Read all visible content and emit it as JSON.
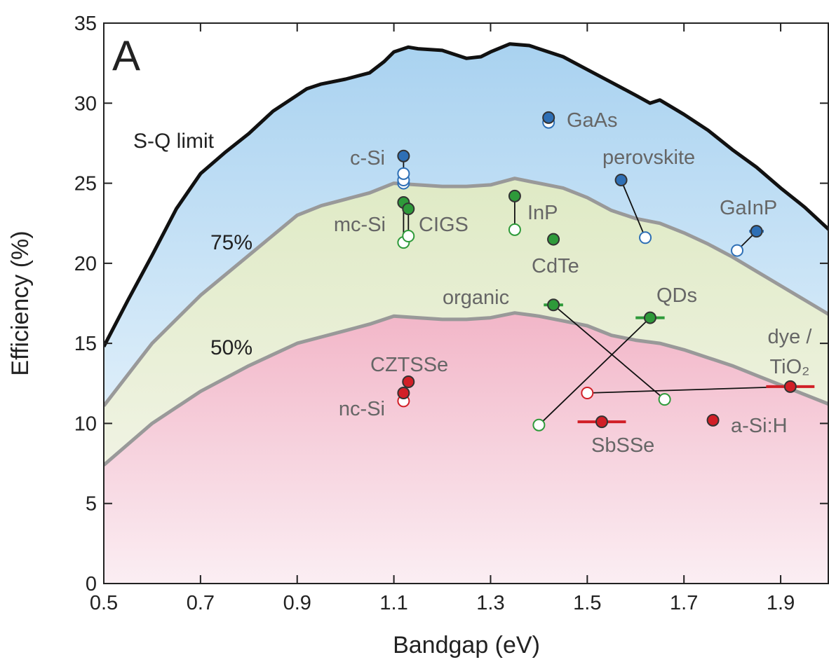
{
  "chart_data": {
    "type": "scatter",
    "panel_label": "A",
    "xlabel": "Bandgap (eV)",
    "ylabel": "Efficiency (%)",
    "xlim": [
      0.5,
      2.0
    ],
    "ylim": [
      0,
      35
    ],
    "x_ticks": [
      "0.5",
      "0.7",
      "0.9",
      "1.1",
      "1.3",
      "1.5",
      "1.7",
      "1.9"
    ],
    "y_ticks": [
      "0",
      "5",
      "10",
      "15",
      "20",
      "25",
      "30",
      "35"
    ],
    "colors": {
      "blue": "#2e6fb5",
      "green": "#2e9a3a",
      "red": "#d11f27",
      "limit_curve": "#111111",
      "fraction_curve": "#999999",
      "fill_top": "#a9d2f0",
      "fill_middle": "#dfeac5",
      "fill_bottom": "#f2b6c8"
    },
    "sq_limit": {
      "label": "S-Q limit",
      "x": [
        0.5,
        0.55,
        0.6,
        0.65,
        0.7,
        0.75,
        0.8,
        0.85,
        0.9,
        0.92,
        0.95,
        1.0,
        1.05,
        1.08,
        1.1,
        1.13,
        1.15,
        1.2,
        1.25,
        1.28,
        1.3,
        1.34,
        1.38,
        1.4,
        1.45,
        1.5,
        1.55,
        1.6,
        1.63,
        1.65,
        1.7,
        1.75,
        1.8,
        1.85,
        1.9,
        1.95,
        2.0
      ],
      "y": [
        14.8,
        17.7,
        20.5,
        23.4,
        25.6,
        26.9,
        28.1,
        29.5,
        30.5,
        30.9,
        31.2,
        31.5,
        31.9,
        32.6,
        33.2,
        33.5,
        33.4,
        33.3,
        32.8,
        32.9,
        33.2,
        33.7,
        33.6,
        33.4,
        32.9,
        32.1,
        31.3,
        30.5,
        30.0,
        30.2,
        29.3,
        28.3,
        27.1,
        26.0,
        24.7,
        23.5,
        22.1
      ]
    },
    "fraction_curves": [
      {
        "label": "75%",
        "x": [
          0.5,
          0.6,
          0.7,
          0.8,
          0.9,
          0.95,
          1.0,
          1.05,
          1.1,
          1.15,
          1.2,
          1.25,
          1.3,
          1.35,
          1.4,
          1.45,
          1.5,
          1.55,
          1.6,
          1.65,
          1.7,
          1.75,
          1.8,
          1.85,
          1.9,
          1.95,
          2.0
        ],
        "y": [
          11.1,
          15.0,
          18.0,
          20.5,
          23.0,
          23.6,
          24.0,
          24.4,
          25.0,
          24.9,
          24.8,
          24.8,
          24.9,
          25.3,
          25.0,
          24.7,
          24.1,
          23.3,
          22.8,
          22.5,
          21.9,
          21.2,
          20.4,
          19.5,
          18.6,
          17.7,
          16.8
        ]
      },
      {
        "label": "50%",
        "x": [
          0.5,
          0.6,
          0.7,
          0.8,
          0.9,
          0.95,
          1.0,
          1.05,
          1.1,
          1.15,
          1.2,
          1.25,
          1.3,
          1.35,
          1.4,
          1.45,
          1.5,
          1.55,
          1.6,
          1.65,
          1.7,
          1.75,
          1.8,
          1.85,
          1.9,
          1.95,
          2.0
        ],
        "y": [
          7.4,
          10.0,
          12.0,
          13.6,
          15.0,
          15.4,
          15.8,
          16.2,
          16.7,
          16.6,
          16.5,
          16.5,
          16.6,
          16.9,
          16.7,
          16.4,
          16.1,
          15.5,
          15.2,
          15.0,
          14.6,
          14.1,
          13.6,
          13.0,
          12.4,
          11.8,
          11.2
        ]
      }
    ],
    "materials": [
      {
        "label": "GaAs",
        "color": "blue",
        "points": [
          {
            "x": 1.42,
            "y": 29.1,
            "filled": true
          },
          {
            "x": 1.42,
            "y": 28.8,
            "filled": false
          }
        ],
        "connect": true
      },
      {
        "label": "c-Si",
        "color": "blue",
        "points": [
          {
            "x": 1.12,
            "y": 26.7,
            "filled": true
          },
          {
            "x": 1.12,
            "y": 25.6,
            "filled": false
          },
          {
            "x": 1.12,
            "y": 25.2,
            "filled": false
          },
          {
            "x": 1.12,
            "y": 25.0,
            "filled": false
          }
        ],
        "connect": true
      },
      {
        "label": "perovskite",
        "color": "blue",
        "points": [
          {
            "x": 1.57,
            "y": 25.2,
            "filled": true
          },
          {
            "x": 1.62,
            "y": 21.6,
            "filled": false
          }
        ],
        "connect": true
      },
      {
        "label": "GaInP",
        "color": "blue",
        "points": [
          {
            "x": 1.85,
            "y": 22.0,
            "filled": true,
            "xerr": 0.015
          },
          {
            "x": 1.81,
            "y": 20.8,
            "filled": false
          }
        ],
        "connect": true
      },
      {
        "label": "mc-Si",
        "color": "green",
        "points": [
          {
            "x": 1.12,
            "y": 23.8,
            "filled": true
          },
          {
            "x": 1.12,
            "y": 21.3,
            "filled": false
          }
        ],
        "connect": true
      },
      {
        "label": "CIGS",
        "color": "green",
        "points": [
          {
            "x": 1.13,
            "y": 23.4,
            "filled": true
          },
          {
            "x": 1.13,
            "y": 21.7,
            "filled": false
          }
        ],
        "connect": true
      },
      {
        "label": "InP",
        "color": "green",
        "points": [
          {
            "x": 1.35,
            "y": 24.2,
            "filled": true
          },
          {
            "x": 1.35,
            "y": 22.1,
            "filled": false
          }
        ],
        "connect": true
      },
      {
        "label": "CdTe",
        "color": "green",
        "points": [
          {
            "x": 1.43,
            "y": 21.5,
            "filled": true
          }
        ],
        "connect": false
      },
      {
        "label": "organic",
        "color": "green",
        "points": [
          {
            "x": 1.43,
            "y": 17.4,
            "filled": true,
            "xerr": 0.02
          },
          {
            "x": 1.66,
            "y": 11.5,
            "filled": false
          }
        ],
        "connect": true
      },
      {
        "label": "QDs",
        "color": "green",
        "points": [
          {
            "x": 1.63,
            "y": 16.6,
            "filled": true,
            "xerr": 0.03
          },
          {
            "x": 1.4,
            "y": 9.9,
            "filled": false
          }
        ],
        "connect": true
      },
      {
        "label": "CZTSSe",
        "color": "red",
        "points": [
          {
            "x": 1.13,
            "y": 12.6,
            "filled": true
          }
        ],
        "connect": false
      },
      {
        "label": "nc-Si",
        "color": "red",
        "points": [
          {
            "x": 1.12,
            "y": 11.9,
            "filled": true
          },
          {
            "x": 1.12,
            "y": 11.4,
            "filled": false
          }
        ],
        "connect": true
      },
      {
        "label": "dye / TiO₂",
        "color": "red",
        "points": [
          {
            "x": 1.92,
            "y": 12.3,
            "filled": true,
            "xerr": 0.05
          },
          {
            "x": 1.5,
            "y": 11.9,
            "filled": false
          }
        ],
        "connect": true
      },
      {
        "label": "SbSSe",
        "color": "red",
        "points": [
          {
            "x": 1.53,
            "y": 10.1,
            "filled": true,
            "xerr": 0.05
          }
        ],
        "connect": false
      },
      {
        "label": "a-Si:H",
        "color": "red",
        "points": [
          {
            "x": 1.76,
            "y": 10.2,
            "filled": true
          }
        ],
        "connect": false
      }
    ]
  }
}
